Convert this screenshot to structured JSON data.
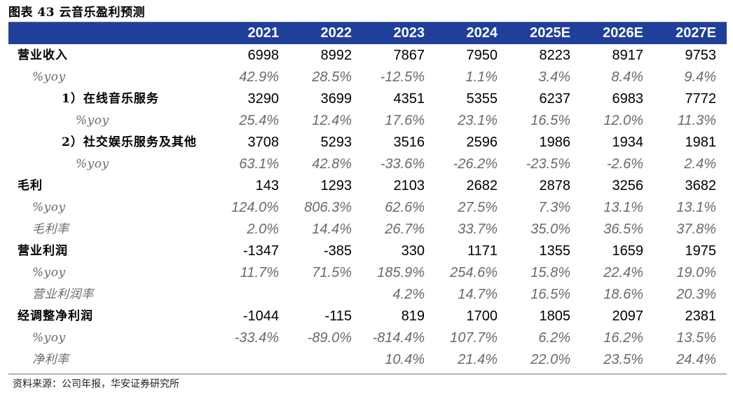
{
  "title": "图表 43 云音乐盈利预测",
  "years": [
    "2021",
    "2022",
    "2023",
    "2024",
    "2025E",
    "2026E",
    "2027E"
  ],
  "rows": [
    {
      "label": "营业收入",
      "style": "main",
      "indent": 0,
      "values": [
        "6998",
        "8992",
        "7867",
        "7950",
        "8223",
        "8917",
        "9753"
      ]
    },
    {
      "label": "%yoy",
      "style": "sub",
      "indent": 2,
      "values": [
        "42.9%",
        "28.5%",
        "-12.5%",
        "1.1%",
        "3.4%",
        "8.4%",
        "9.4%"
      ]
    },
    {
      "label": "1）在线音乐服务",
      "style": "main",
      "indent": 1,
      "values": [
        "3290",
        "3699",
        "4351",
        "5355",
        "6237",
        "6983",
        "7772"
      ]
    },
    {
      "label": "%yoy",
      "style": "sub",
      "indent": 3,
      "values": [
        "25.4%",
        "12.4%",
        "17.6%",
        "23.1%",
        "16.5%",
        "12.0%",
        "11.3%"
      ]
    },
    {
      "label": "2）社交娱乐服务及其他",
      "style": "main",
      "indent": 1,
      "values": [
        "3708",
        "5293",
        "3516",
        "2596",
        "1986",
        "1934",
        "1981"
      ]
    },
    {
      "label": "%yoy",
      "style": "sub",
      "indent": 3,
      "values": [
        "63.1%",
        "42.8%",
        "-33.6%",
        "-26.2%",
        "-23.5%",
        "-2.6%",
        "2.4%"
      ]
    },
    {
      "label": "毛利",
      "style": "main",
      "indent": 0,
      "values": [
        "143",
        "1293",
        "2103",
        "2682",
        "2878",
        "3256",
        "3682"
      ]
    },
    {
      "label": "%yoy",
      "style": "sub",
      "indent": 2,
      "values": [
        "124.0%",
        "806.3%",
        "62.6%",
        "27.5%",
        "7.3%",
        "13.1%",
        "13.1%"
      ]
    },
    {
      "label": "毛利率",
      "style": "sub",
      "indent": 2,
      "values": [
        "2.0%",
        "14.4%",
        "26.7%",
        "33.7%",
        "35.0%",
        "36.5%",
        "37.8%"
      ]
    },
    {
      "label": "营业利润",
      "style": "main",
      "indent": 0,
      "values": [
        "-1347",
        "-385",
        "330",
        "1171",
        "1355",
        "1659",
        "1975"
      ]
    },
    {
      "label": "%yoy",
      "style": "sub",
      "indent": 2,
      "values": [
        "11.7%",
        "71.5%",
        "185.9%",
        "254.6%",
        "15.8%",
        "22.4%",
        "19.0%"
      ]
    },
    {
      "label": "营业利润率",
      "style": "sub",
      "indent": 2,
      "values": [
        "",
        "",
        "4.2%",
        "14.7%",
        "16.5%",
        "18.6%",
        "20.3%"
      ]
    },
    {
      "label": "经调整净利润",
      "style": "main",
      "indent": 0,
      "values": [
        "-1044",
        "-115",
        "819",
        "1700",
        "1805",
        "2097",
        "2381"
      ]
    },
    {
      "label": "%yoy",
      "style": "sub",
      "indent": 2,
      "values": [
        "-33.4%",
        "-89.0%",
        "-814.4%",
        "107.7%",
        "6.2%",
        "16.2%",
        "13.5%"
      ]
    },
    {
      "label": "净利率",
      "style": "sub",
      "indent": 2,
      "values": [
        "",
        "",
        "10.4%",
        "21.4%",
        "22.0%",
        "23.5%",
        "24.4%"
      ]
    }
  ],
  "source": "资料来源：公司年报，华安证券研究所",
  "colors": {
    "header_bg": "#1f3f9b",
    "header_text": "#ffffff",
    "sub_text": "#6a6a6a"
  }
}
